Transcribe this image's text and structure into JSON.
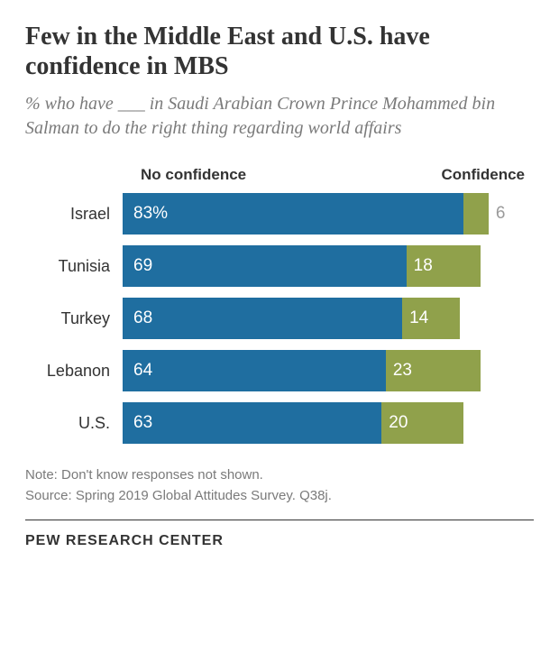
{
  "title": "Few in the Middle East and U.S. have confidence in MBS",
  "subtitle": "% who have ___ in Saudi Arabian Crown Prince Mohammed bin Salman to do the right thing regarding world affairs",
  "chart": {
    "type": "bar",
    "legend_noconf": "No confidence",
    "legend_conf": "Confidence",
    "scale_max": 100,
    "noconf_color": "#1f6ea0",
    "conf_color": "#90a14b",
    "outside_label_color": "#9a9a9a",
    "bar_text_color": "#ffffff",
    "background_color": "#ffffff",
    "label_fontsize": 18,
    "value_fontsize": 19,
    "legend_fontsize": 17,
    "rows": [
      {
        "country": "Israel",
        "noconf": 83,
        "conf": 6,
        "noconf_label": "83%",
        "conf_label": "6",
        "conf_label_outside": true
      },
      {
        "country": "Tunisia",
        "noconf": 69,
        "conf": 18,
        "noconf_label": "69",
        "conf_label": "18",
        "conf_label_outside": false
      },
      {
        "country": "Turkey",
        "noconf": 68,
        "conf": 14,
        "noconf_label": "68",
        "conf_label": "14",
        "conf_label_outside": false
      },
      {
        "country": "Lebanon",
        "noconf": 64,
        "conf": 23,
        "noconf_label": "64",
        "conf_label": "23",
        "conf_label_outside": false
      },
      {
        "country": "U.S.",
        "noconf": 63,
        "conf": 20,
        "noconf_label": "63",
        "conf_label": "20",
        "conf_label_outside": false
      }
    ]
  },
  "note": "Note: Don't know responses not shown.",
  "source": "Source: Spring 2019 Global Attitudes Survey. Q38j.",
  "footer": "PEW RESEARCH CENTER"
}
